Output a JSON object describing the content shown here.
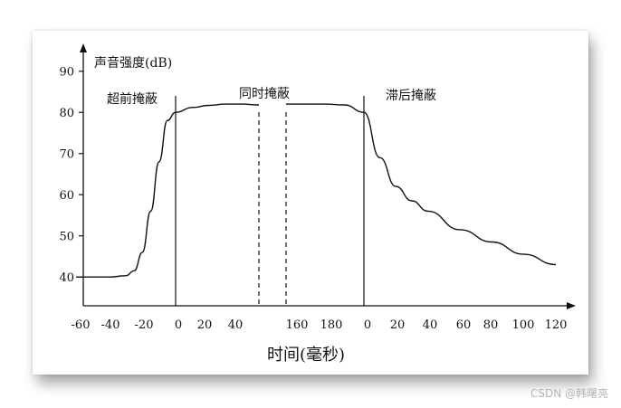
{
  "chart_data": {
    "type": "line",
    "ylabel": "声音强度(dB)",
    "xlabel": "时间(毫秒)",
    "y_ticks": [
      "90",
      "80",
      "70",
      "60",
      "50",
      "40"
    ],
    "y_tick_values": [
      90,
      80,
      70,
      60,
      50,
      40
    ],
    "ylim": [
      33,
      95
    ],
    "x_tick_labels": [
      "-60",
      "-40",
      "-20",
      "0",
      "20",
      "40",
      "160",
      "180",
      "0",
      "20",
      "40",
      "60",
      "80",
      "100",
      "120"
    ],
    "regions": [
      {
        "label": "超前掩蔽",
        "x_range": [
          -60,
          0
        ]
      },
      {
        "label": "同时掩蔽",
        "x_range": [
          0,
          190
        ]
      },
      {
        "label": "滞后掩蔽",
        "x_range": [
          0,
          120
        ]
      }
    ],
    "axis_break": "dashed gap between 40 and 160",
    "series": [
      {
        "segments": [
          {
            "region": "pre",
            "x": [
              -60,
              -40,
              -30,
              -25,
              -20,
              -15,
              -10,
              -5,
              0
            ],
            "y": [
              40,
              40,
              40.3,
              41.5,
              46,
              56,
              68,
              78,
              80
            ]
          },
          {
            "region": "sim",
            "x": [
              0,
              10,
              20,
              30,
              40,
              50
            ],
            "y": [
              80,
              81.2,
              81.7,
              82,
              82,
              81.8
            ]
          },
          {
            "region": "sim",
            "x": [
              150,
              160,
              170,
              180,
              190
            ],
            "y": [
              82,
              82,
              82,
              81.8,
              80
            ]
          },
          {
            "region": "post",
            "x": [
              0,
              10,
              20,
              30,
              40,
              60,
              80,
              100,
              120
            ],
            "y": [
              80,
              69,
              62,
              58.5,
              56,
              51.5,
              48.5,
              45.5,
              43
            ]
          }
        ]
      }
    ]
  },
  "watermark": "CSDN @韩曙亮"
}
